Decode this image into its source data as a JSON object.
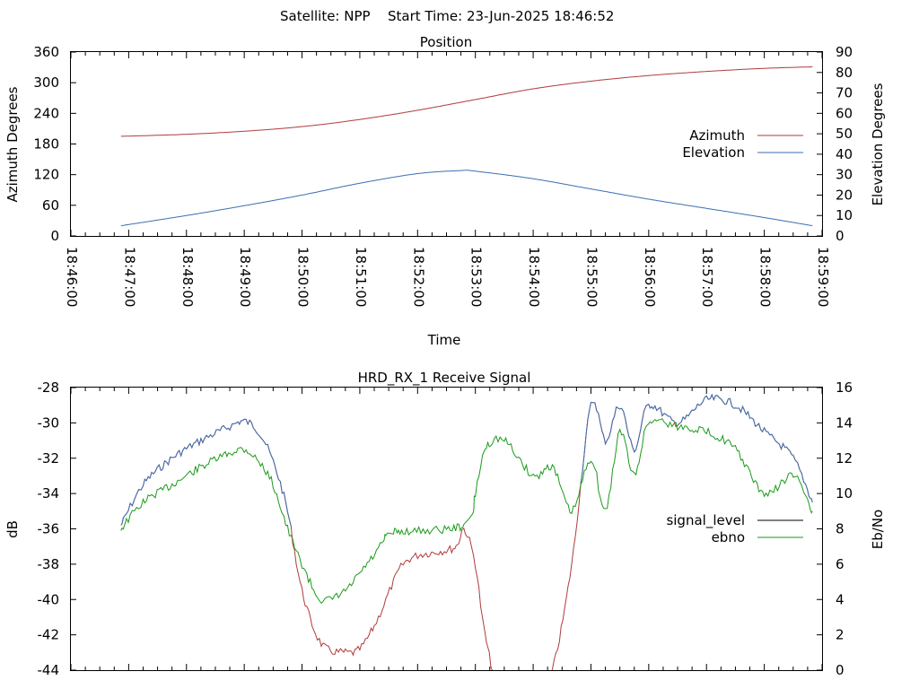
{
  "header": {
    "satellite_label": "Satellite: NPP",
    "start_time_label": "Start Time: 23-Jun-2025 18:46:52"
  },
  "colors": {
    "azimuth": "#b03a3a",
    "elevation": "#3a6fb0",
    "signal_level_lower": "#b03a3a",
    "signal_level_upper": "#3a6fb0",
    "ebno": "#1a9a1a",
    "signal_level_legend": "#000000"
  },
  "chart_data": [
    {
      "type": "line",
      "title": "Position",
      "xlabel": "Time",
      "ylabel": "Azimuth Degrees",
      "y2label": "Elevation Degrees",
      "xlim": [
        "18:46:00",
        "18:59:00"
      ],
      "ylim": [
        0,
        360
      ],
      "y2lim": [
        0,
        90
      ],
      "x_ticks": [
        "18:46:00",
        "18:47:00",
        "18:48:00",
        "18:49:00",
        "18:50:00",
        "18:51:00",
        "18:52:00",
        "18:53:00",
        "18:54:00",
        "18:55:00",
        "18:56:00",
        "18:57:00",
        "18:58:00",
        "18:59:00"
      ],
      "y_ticks": [
        "0",
        "60",
        "120",
        "180",
        "240",
        "300",
        "360"
      ],
      "y2_ticks": [
        "0",
        "10",
        "20",
        "30",
        "40",
        "50",
        "60",
        "70",
        "80",
        "90"
      ],
      "legend_position": "right",
      "series": [
        {
          "name": "Azimuth",
          "axis": "y",
          "x": [
            "18:46:52",
            "18:48:00",
            "18:49:00",
            "18:50:00",
            "18:51:00",
            "18:52:00",
            "18:53:00",
            "18:54:00",
            "18:55:00",
            "18:56:00",
            "18:57:00",
            "18:58:00",
            "18:58:50"
          ],
          "values": [
            195,
            199,
            205,
            214,
            228,
            246,
            267,
            288,
            303,
            314,
            322,
            328,
            331
          ]
        },
        {
          "name": "Elevation",
          "axis": "y2",
          "x": [
            "18:46:52",
            "18:48:00",
            "18:49:00",
            "18:50:00",
            "18:51:00",
            "18:52:00",
            "18:52:45",
            "18:53:00",
            "18:54:00",
            "18:55:00",
            "18:56:00",
            "18:57:00",
            "18:58:00",
            "18:58:50"
          ],
          "values": [
            5,
            10,
            14.8,
            20,
            25.8,
            30.5,
            32,
            31.7,
            28,
            23,
            18,
            13.5,
            9,
            5
          ]
        }
      ]
    },
    {
      "type": "line",
      "title": "HRD_RX_1 Receive Signal",
      "xlabel": "",
      "ylabel": "dB",
      "y2label": "Eb/No",
      "xlim": [
        "18:46:00",
        "18:59:00"
      ],
      "ylim": [
        -44,
        -28
      ],
      "y2lim": [
        0,
        16
      ],
      "y_ticks": [
        "-44",
        "-42",
        "-40",
        "-38",
        "-36",
        "-34",
        "-32",
        "-30",
        "-28"
      ],
      "y2_ticks": [
        "0",
        "2",
        "4",
        "6",
        "8",
        "10",
        "12",
        "14",
        "16"
      ],
      "legend_position": "right",
      "series": [
        {
          "name": "signal_level",
          "axis": "y",
          "x": [
            "18:46:52",
            "18:47:15",
            "18:47:45",
            "18:48:15",
            "18:48:45",
            "18:49:00",
            "18:49:15",
            "18:49:30",
            "18:49:45",
            "18:50:00",
            "18:50:20",
            "18:50:45",
            "18:51:00",
            "18:51:15",
            "18:51:25",
            "18:51:35",
            "18:51:45",
            "18:52:00",
            "18:52:20",
            "18:52:40",
            "18:52:48",
            "18:53:00",
            "18:53:10",
            "18:53:30",
            "18:54:00",
            "18:54:20",
            "18:54:40",
            "18:55:00",
            "18:55:15",
            "18:55:30",
            "18:55:45",
            "18:56:00",
            "18:56:30",
            "18:57:00",
            "18:57:30",
            "18:58:00",
            "18:58:30",
            "18:58:50"
          ],
          "values": [
            -35.8,
            -33.5,
            -32.0,
            -31.0,
            -30.2,
            -29.9,
            -30.5,
            -32.2,
            -35.0,
            -39.5,
            -42.5,
            -43.0,
            -42.8,
            -41.5,
            -40.3,
            -39.0,
            -38.0,
            -37.5,
            -37.3,
            -37.0,
            -36.0,
            -38.0,
            -42.0,
            -46.0,
            -46.0,
            -44.0,
            -38.0,
            -29.0,
            -31.0,
            -29.0,
            -31.5,
            -29.0,
            -30.0,
            -28.7,
            -29.0,
            -30.5,
            -32.0,
            -34.5
          ]
        },
        {
          "name": "ebno",
          "axis": "y2",
          "x": [
            "18:46:52",
            "18:47:15",
            "18:47:45",
            "18:48:15",
            "18:48:45",
            "18:49:00",
            "18:49:15",
            "18:49:30",
            "18:49:45",
            "18:50:00",
            "18:50:20",
            "18:50:45",
            "18:51:00",
            "18:51:15",
            "18:51:25",
            "18:51:35",
            "18:52:48",
            "18:53:00",
            "18:53:10",
            "18:53:30",
            "18:54:00",
            "18:54:20",
            "18:54:40",
            "18:55:00",
            "18:55:15",
            "18:55:30",
            "18:55:45",
            "18:56:00",
            "18:56:30",
            "18:57:00",
            "18:57:30",
            "18:58:00",
            "18:58:30",
            "18:58:50"
          ],
          "values": [
            8.0,
            9.5,
            10.5,
            11.5,
            12.3,
            12.5,
            11.8,
            10.5,
            8.0,
            6.0,
            4.0,
            4.5,
            5.5,
            6.5,
            7.3,
            7.8,
            8.2,
            10.0,
            12.5,
            13.0,
            11.0,
            11.5,
            9.0,
            12.0,
            9.0,
            13.5,
            11.0,
            14.0,
            13.8,
            13.5,
            12.5,
            10.0,
            11.0,
            9.0
          ]
        }
      ]
    }
  ]
}
